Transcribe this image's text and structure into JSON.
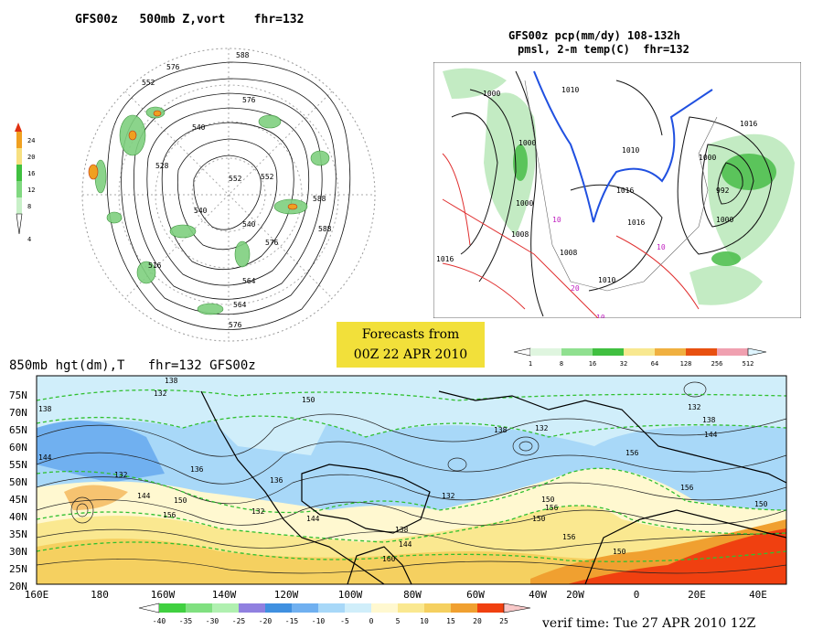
{
  "titles": {
    "vort": "GFS00z   500mb Z,vort    fhr=132",
    "precip_line1": "GFS00z pcp(mm/dy) 108-132h",
    "precip_line2": "pmsl, 2-m temp(C)  fhr=132",
    "hgt850": "850mb hgt(dm),T   fhr=132 GFS00z"
  },
  "forecast_box": {
    "line1": "Forecasts from",
    "line2": "00Z 22 APR 2010"
  },
  "verif_time": "verif time: Tue 27 APR 2010 12Z",
  "vort_scale": {
    "ticks": [
      "24",
      "20",
      "16",
      "12",
      "8",
      "4"
    ],
    "colors": [
      "#e03010",
      "#f0a020",
      "#f7e080",
      "#40c040",
      "#80d880",
      "#c8f0c8"
    ]
  },
  "precip_scale": {
    "ticks": [
      "1",
      "8",
      "16",
      "32",
      "64",
      "128",
      "256",
      "512"
    ],
    "colors": [
      "#dff5df",
      "#90e090",
      "#40c040",
      "#f8e890",
      "#f0b040",
      "#e85010",
      "#f0a0b0"
    ]
  },
  "temp_scale": {
    "ticks": [
      "-40",
      "-35",
      "-30",
      "-25",
      "-20",
      "-15",
      "-10",
      "-5",
      "0",
      "5",
      "10",
      "15",
      "20",
      "25"
    ],
    "colors": [
      "#40d040",
      "#80e080",
      "#b0f0b0",
      "#9080e0",
      "#4090e0",
      "#70b0f0",
      "#a8d8f8",
      "#d0eefa",
      "#fff8d0",
      "#fae890",
      "#f5d060",
      "#f0a030",
      "#f04010",
      "#f8c8c8"
    ]
  },
  "polar_labels": [
    "576",
    "588",
    "552",
    "540",
    "528",
    "540",
    "552",
    "564",
    "576",
    "588",
    "516",
    "576",
    "552",
    "540",
    "564",
    "588",
    "576"
  ],
  "precip_labels": [
    "1000",
    "1010",
    "1000",
    "1000",
    "1008",
    "1016",
    "1010",
    "1016",
    "1016",
    "1000",
    "992",
    "1000",
    "1008",
    "1010",
    "1016",
    "10",
    "10",
    "10",
    "20"
  ],
  "hgt_contour_labels": [
    "138",
    "132",
    "150",
    "138",
    "132",
    "144",
    "132",
    "136",
    "136",
    "132",
    "138",
    "144",
    "150",
    "156",
    "156",
    "150",
    "144",
    "138",
    "132",
    "150",
    "156",
    "150",
    "156",
    "150",
    "144",
    "138",
    "160",
    "132",
    "144",
    "156"
  ],
  "lat_labels": [
    "75N",
    "70N",
    "65N",
    "60N",
    "55N",
    "50N",
    "45N",
    "40N",
    "35N",
    "30N",
    "25N",
    "20N"
  ],
  "lon_labels": [
    "160E",
    "180",
    "160W",
    "140W",
    "120W",
    "100W",
    "80W",
    "60W",
    "40W",
    "20W",
    "0",
    "20E",
    "40E"
  ]
}
